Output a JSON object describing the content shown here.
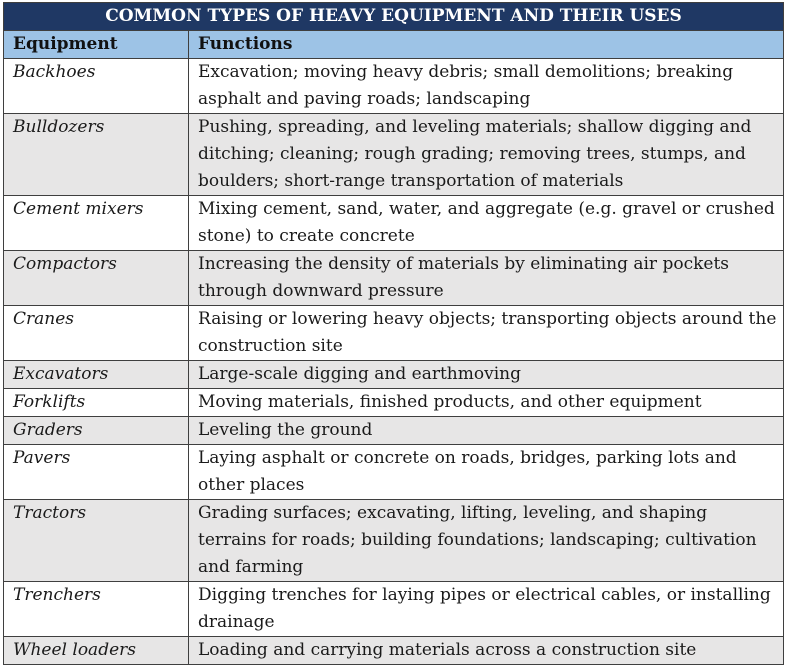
{
  "title": "COMMON TYPES OF HEAVY EQUIPMENT AND THEIR USES",
  "headers": {
    "equipment": "Equipment",
    "functions": "Functions"
  },
  "colors": {
    "title_bg": "#1f3864",
    "header_bg": "#9dc3e6",
    "stripe_bg": "#e7e6e6"
  },
  "rows": [
    {
      "equipment": "Backhoes",
      "functions": "Excavation; moving heavy debris; small demolitions; breaking asphalt and paving roads; landscaping"
    },
    {
      "equipment": "Bulldozers",
      "functions": "Pushing, spreading, and leveling materials; shallow digging and ditching; cleaning; rough grading; removing trees, stumps, and boulders; short-range transportation of materials"
    },
    {
      "equipment": "Cement mixers",
      "functions": "Mixing cement, sand, water, and aggregate (e.g. gravel or crushed stone) to create concrete"
    },
    {
      "equipment": "Compactors",
      "functions": "Increasing the density of materials by eliminating air pockets through downward pressure"
    },
    {
      "equipment": "Cranes",
      "functions": "Raising or lowering heavy objects; transporting objects around the construction site"
    },
    {
      "equipment": "Excavators",
      "functions": "Large-scale digging and earthmoving"
    },
    {
      "equipment": "Forklifts",
      "functions": "Moving materials, finished products, and other equipment"
    },
    {
      "equipment": "Graders",
      "functions": "Leveling the ground"
    },
    {
      "equipment": "Pavers",
      "functions": "Laying asphalt or concrete on roads, bridges, parking lots and other places"
    },
    {
      "equipment": "Tractors",
      "functions": "Grading surfaces; excavating, lifting, leveling, and shaping terrains for roads; building foundations; landscaping; cultivation and farming"
    },
    {
      "equipment": "Trenchers",
      "functions": "Digging trenches for laying pipes or electrical cables, or installing drainage"
    },
    {
      "equipment": "Wheel loaders",
      "functions": "Loading and carrying materials across a construction site"
    }
  ]
}
